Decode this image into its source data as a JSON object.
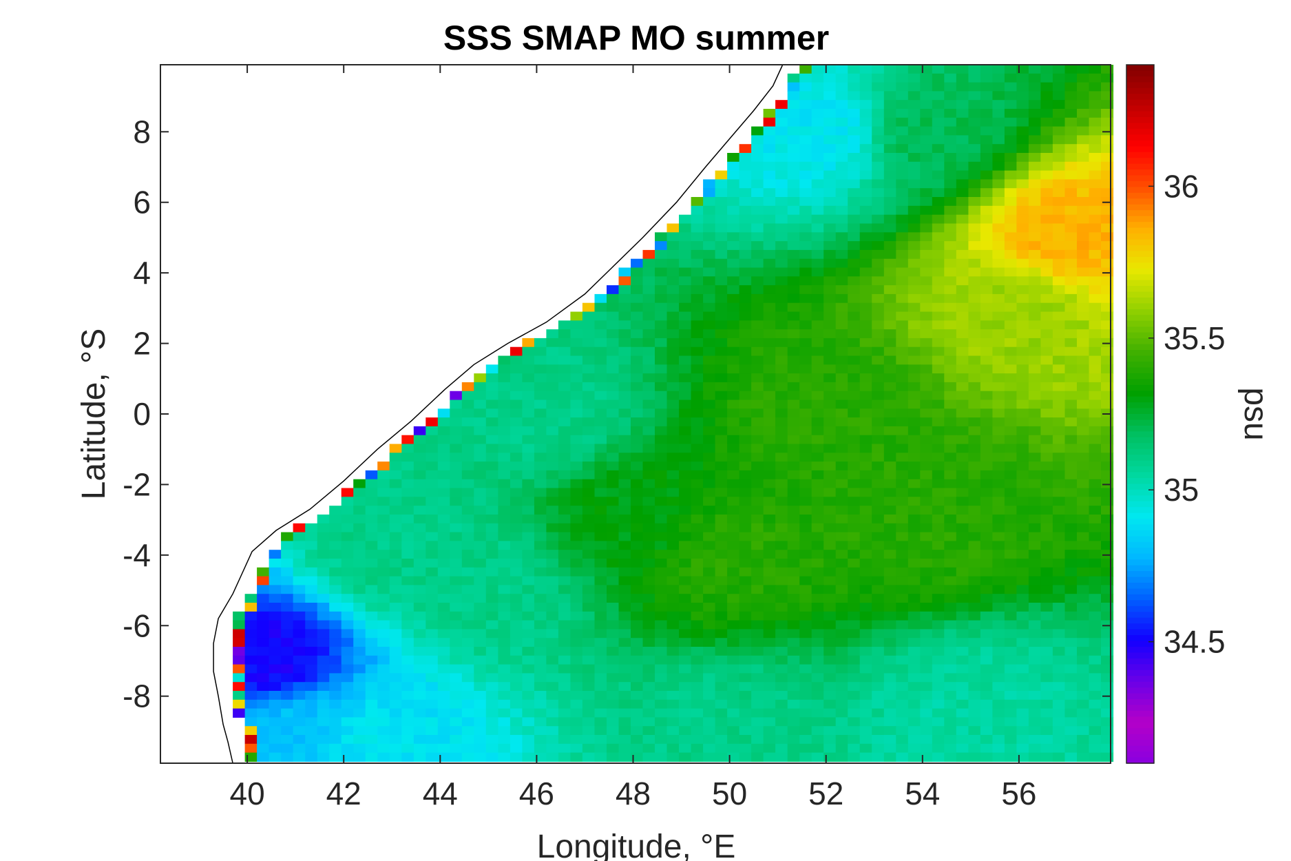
{
  "chart_data": {
    "type": "heatmap",
    "title": "SSS SMAP MO summer",
    "xlabel": "Longitude, °E",
    "ylabel": "Latitude, °S",
    "colorbar_label": "psu",
    "xlim": [
      38.2,
      57.9
    ],
    "ylim": [
      -9.9,
      9.9
    ],
    "x_ticks": [
      40,
      42,
      44,
      46,
      48,
      50,
      52,
      54,
      56
    ],
    "x_tick_labels": [
      "40",
      "42",
      "44",
      "46",
      "48",
      "50",
      "52",
      "54",
      "56"
    ],
    "y_ticks": [
      8,
      6,
      4,
      2,
      0,
      -2,
      -4,
      -6,
      -8
    ],
    "y_tick_labels": [
      "8",
      "6",
      "4",
      "2",
      "0",
      "-2",
      "-4",
      "-6",
      "-8"
    ],
    "clim": [
      34.1,
      36.4
    ],
    "colorbar_ticks": [
      36,
      35.5,
      35,
      34.5
    ],
    "colorbar_tick_labels": [
      "36",
      "35.5",
      "35",
      "34.5"
    ],
    "grid": false,
    "colorbar_position": "right",
    "colors": {
      "land": "#ffffff",
      "coastline": "#000000",
      "colormap": [
        "#8a00e0",
        "#b400c8",
        "#6a00e8",
        "#1200ff",
        "#0060ff",
        "#00b8ff",
        "#00e8f0",
        "#00d8a0",
        "#00c060",
        "#00a000",
        "#40b000",
        "#90d000",
        "#e8e800",
        "#ffb000",
        "#ff5000",
        "#ff0000",
        "#c00000",
        "#800000"
      ]
    },
    "field_description_points": [
      {
        "lon": 40.5,
        "lat": -7.0,
        "sss": 34.5
      },
      {
        "lon": 41.2,
        "lat": -8.8,
        "sss": 34.8
      },
      {
        "lon": 42.5,
        "lat": -9.2,
        "sss": 34.9
      },
      {
        "lon": 43.0,
        "lat": -4.0,
        "sss": 35.1
      },
      {
        "lon": 45.0,
        "lat": -5.0,
        "sss": 35.1
      },
      {
        "lon": 46.0,
        "lat": 0.0,
        "sss": 35.1
      },
      {
        "lon": 48.0,
        "lat": -3.0,
        "sss": 35.3
      },
      {
        "lon": 50.0,
        "lat": -4.0,
        "sss": 35.4
      },
      {
        "lon": 52.0,
        "lat": 0.0,
        "sss": 35.4
      },
      {
        "lon": 54.0,
        "lat": -3.0,
        "sss": 35.4
      },
      {
        "lon": 56.0,
        "lat": 3.0,
        "sss": 35.6
      },
      {
        "lon": 57.0,
        "lat": 5.0,
        "sss": 35.85
      },
      {
        "lon": 52.0,
        "lat": 8.0,
        "sss": 34.9
      },
      {
        "lon": 54.0,
        "lat": 8.0,
        "sss": 35.2
      },
      {
        "lon": 55.0,
        "lat": -8.5,
        "sss": 35.05
      },
      {
        "lon": 50.0,
        "lat": -9.0,
        "sss": 35.1
      }
    ]
  }
}
